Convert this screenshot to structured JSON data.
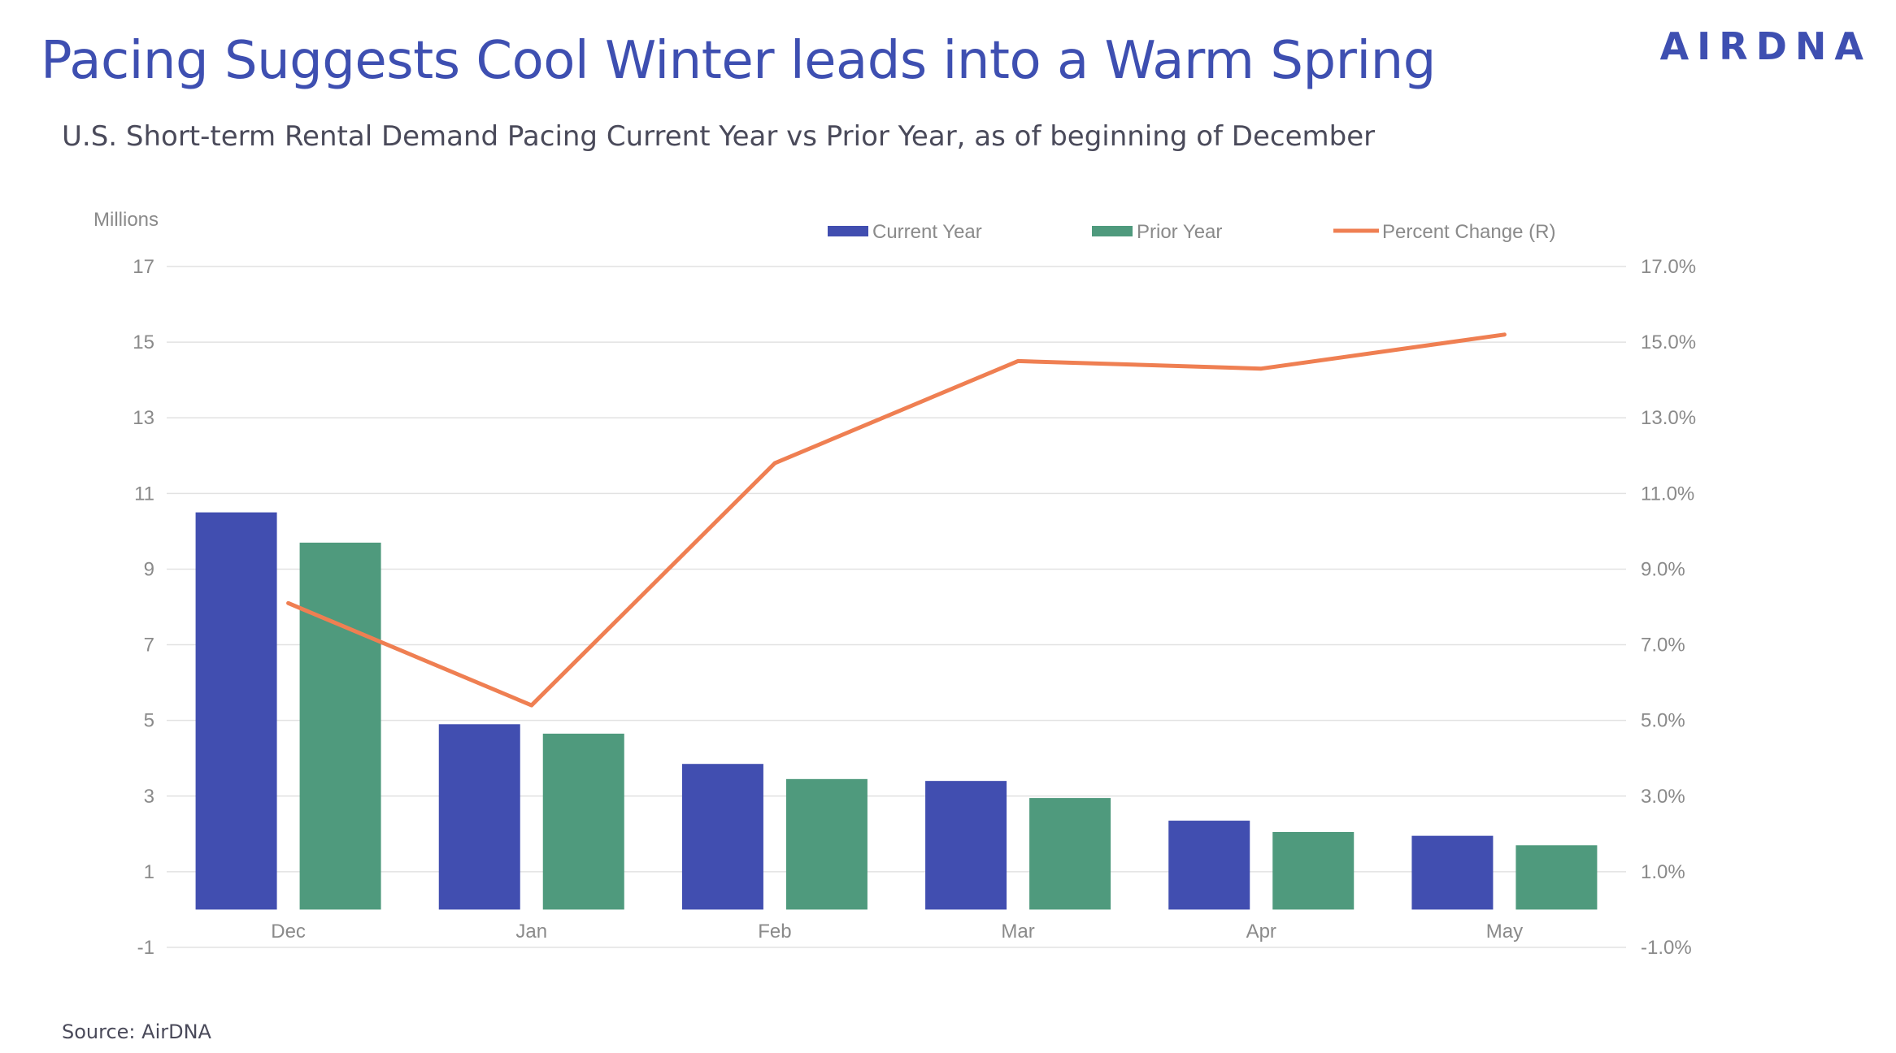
{
  "title": "Pacing Suggests Cool Winter leads into a Warm Spring",
  "logo": "AIRDNA",
  "subtitle": "U.S. Short-term Rental Demand Pacing Current Year vs Prior Year, as of beginning of December",
  "source": "Source: AirDNA",
  "colors": {
    "current_year": "#414eb0",
    "prior_year": "#4f9a7d",
    "percent_change": "#ef7f52",
    "grid": "#e2e2e2",
    "title": "#3e4fb1"
  },
  "chart_data": {
    "type": "bar",
    "ylabel": "Millions",
    "categories": [
      "Dec",
      "Jan",
      "Feb",
      "Mar",
      "Apr",
      "May"
    ],
    "series": [
      {
        "name": "Current Year",
        "kind": "bar",
        "axis": "left",
        "values": [
          10.5,
          4.9,
          3.85,
          3.4,
          2.35,
          1.95
        ]
      },
      {
        "name": "Prior Year",
        "kind": "bar",
        "axis": "left",
        "values": [
          9.7,
          4.65,
          3.45,
          2.95,
          2.05,
          1.7
        ]
      },
      {
        "name": "Percent Change (R)",
        "kind": "line",
        "axis": "right",
        "values": [
          8.1,
          5.4,
          11.8,
          14.5,
          14.3,
          15.2
        ]
      }
    ],
    "ylim": [
      -1,
      17
    ],
    "yticks": [
      "17",
      "15",
      "13",
      "11",
      "9",
      "7",
      "5",
      "3",
      "1",
      "-1"
    ],
    "y2lim": [
      -1,
      17
    ],
    "y2ticks": [
      "17.0%",
      "15.0%",
      "13.0%",
      "11.0%",
      "9.0%",
      "7.0%",
      "5.0%",
      "3.0%",
      "1.0%",
      "-1.0%"
    ],
    "legend_position": "top",
    "grid": true
  }
}
